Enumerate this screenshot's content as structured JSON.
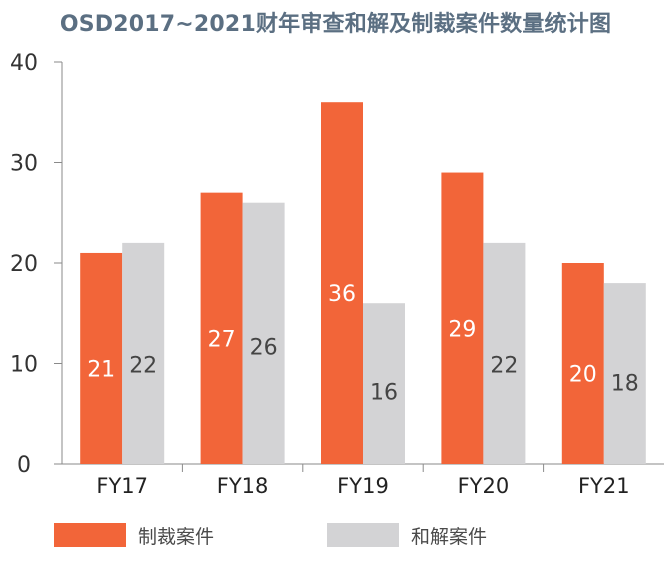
{
  "chart_data": {
    "type": "bar",
    "title": "OSD2017~2021财年审查和解及制裁案件数量统计图",
    "categories": [
      "FY17",
      "FY18",
      "FY19",
      "FY20",
      "FY21"
    ],
    "series": [
      {
        "name": "制裁案件",
        "color": "#f26539",
        "values": [
          21,
          27,
          36,
          29,
          20
        ]
      },
      {
        "name": "和解案件",
        "color": "#d3d3d5",
        "values": [
          22,
          26,
          16,
          22,
          18
        ]
      }
    ],
    "ylim": [
      0,
      40
    ],
    "yticks": [
      0,
      10,
      20,
      30,
      40
    ],
    "xlabel": "",
    "ylabel": "",
    "grid": false,
    "legend_position": "bottom"
  }
}
